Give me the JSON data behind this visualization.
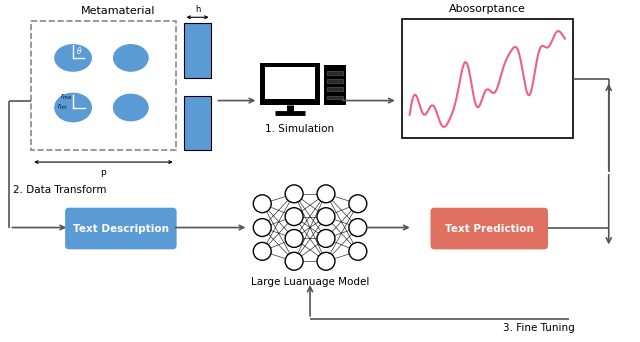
{
  "bg_color": "#ffffff",
  "metamaterial_label": "Metamaterial",
  "absorptance_label": "Abosorptance",
  "simulation_label": "1. Simulation",
  "data_transform_label": "2. Data Transform",
  "llm_label": "Large Luanuage Model",
  "fine_tuning_label": "3. Fine Tuning",
  "text_desc_label": "Text Description",
  "text_pred_label": "Text Prediction",
  "blue_color": "#5B9BD5",
  "red_color": "#E07060",
  "arrow_color": "#555555",
  "dashed_box_color": "#888888",
  "graph_line_color": "#F06080",
  "figsize": [
    6.4,
    3.42
  ],
  "dpi": 100
}
